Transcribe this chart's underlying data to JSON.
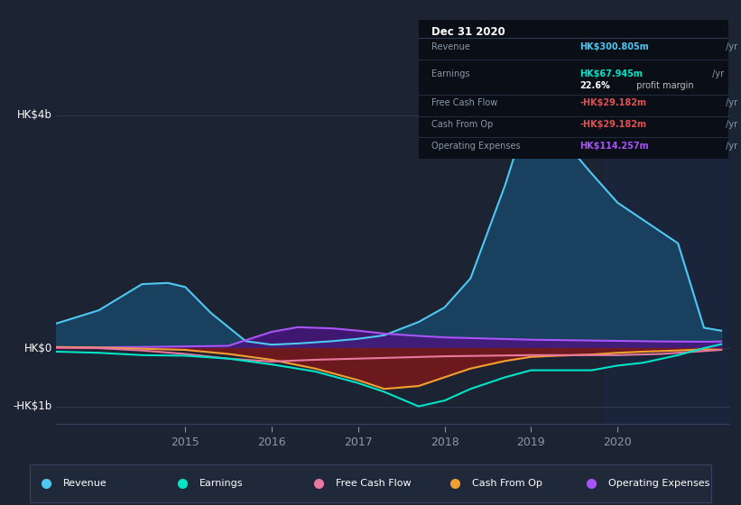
{
  "bg_color": "#1c2333",
  "plot_bg_color": "#1c2333",
  "title_box": {
    "date": "Dec 31 2020",
    "rows": [
      {
        "label": "Revenue",
        "value": "HK$300.805m",
        "value_color": "#4dc8f0",
        "suffix": " /yr",
        "extra": null
      },
      {
        "label": "Earnings",
        "value": "HK$67.945m",
        "value_color": "#00e5c8",
        "suffix": " /yr",
        "extra": "22.6% profit margin"
      },
      {
        "label": "Free Cash Flow",
        "value": "-HK$29.182m",
        "value_color": "#e05252",
        "suffix": " /yr",
        "extra": null
      },
      {
        "label": "Cash From Op",
        "value": "-HK$29.182m",
        "value_color": "#e05252",
        "suffix": " /yr",
        "extra": null
      },
      {
        "label": "Operating Expenses",
        "value": "HK$114.257m",
        "value_color": "#a855f7",
        "suffix": " /yr",
        "extra": null
      }
    ]
  },
  "yticks_labels": [
    "HK$4b",
    "HK$0",
    "-HK$1b"
  ],
  "ytick_values": [
    4000,
    0,
    -1000
  ],
  "ylim": [
    -1350,
    5200
  ],
  "xlim": [
    2013.5,
    2021.3
  ],
  "xticks": [
    2015,
    2016,
    2017,
    2018,
    2019,
    2020
  ],
  "grid_color": "#2e3a50",
  "text_color": "#8899aa",
  "axes_color": "#3a4060",
  "legend_bg": "#20293a",
  "legend_border": "#3a4060",
  "revenue_fill_color": "#1a4060",
  "opex_fill_color": "#4a1580",
  "cop_fill_color": "#7a1818",
  "series": {
    "revenue": {
      "color": "#4dc8f0",
      "label": "Revenue",
      "x": [
        2013.5,
        2014.0,
        2014.5,
        2014.8,
        2015.0,
        2015.3,
        2015.7,
        2016.0,
        2016.3,
        2016.7,
        2017.0,
        2017.3,
        2017.7,
        2018.0,
        2018.3,
        2018.7,
        2019.0,
        2019.3,
        2019.7,
        2020.0,
        2020.3,
        2020.7,
        2021.0,
        2021.2
      ],
      "y": [
        420,
        650,
        1100,
        1120,
        1050,
        600,
        120,
        60,
        80,
        120,
        160,
        220,
        450,
        700,
        1200,
        2800,
        4200,
        3700,
        3000,
        2500,
        2200,
        1800,
        350,
        300
      ]
    },
    "earnings": {
      "color": "#00e5c8",
      "label": "Earnings",
      "x": [
        2013.5,
        2014.0,
        2014.5,
        2015.0,
        2015.5,
        2016.0,
        2016.5,
        2017.0,
        2017.3,
        2017.7,
        2018.0,
        2018.3,
        2018.7,
        2019.0,
        2019.3,
        2019.7,
        2020.0,
        2020.3,
        2020.7,
        2021.0,
        2021.2
      ],
      "y": [
        -60,
        -80,
        -120,
        -130,
        -180,
        -280,
        -400,
        -600,
        -750,
        -1000,
        -900,
        -700,
        -500,
        -380,
        -380,
        -380,
        -300,
        -250,
        -120,
        0,
        68
      ]
    },
    "free_cash_flow": {
      "color": "#e878a0",
      "label": "Free Cash Flow",
      "x": [
        2013.5,
        2014.0,
        2014.5,
        2015.0,
        2015.5,
        2016.0,
        2016.5,
        2017.0,
        2017.5,
        2018.0,
        2018.5,
        2019.0,
        2019.5,
        2020.0,
        2020.5,
        2021.0,
        2021.2
      ],
      "y": [
        10,
        0,
        -40,
        -100,
        -180,
        -230,
        -200,
        -180,
        -160,
        -140,
        -130,
        -120,
        -120,
        -120,
        -100,
        -50,
        -29
      ]
    },
    "cash_from_op": {
      "color": "#f0a030",
      "label": "Cash From Op",
      "x": [
        2013.5,
        2014.0,
        2014.5,
        2015.0,
        2015.5,
        2016.0,
        2016.5,
        2017.0,
        2017.3,
        2017.7,
        2018.0,
        2018.3,
        2018.7,
        2019.0,
        2019.3,
        2019.7,
        2020.0,
        2020.3,
        2020.7,
        2021.0,
        2021.2
      ],
      "y": [
        20,
        10,
        -10,
        -30,
        -100,
        -200,
        -350,
        -550,
        -700,
        -650,
        -500,
        -350,
        -220,
        -150,
        -130,
        -110,
        -80,
        -60,
        -40,
        -20,
        -29
      ]
    },
    "operating_expenses": {
      "color": "#a855f7",
      "label": "Operating Expenses",
      "x": [
        2013.5,
        2014.0,
        2014.5,
        2015.0,
        2015.5,
        2016.0,
        2016.3,
        2016.7,
        2017.0,
        2017.3,
        2017.7,
        2018.0,
        2018.5,
        2019.0,
        2019.5,
        2020.0,
        2020.5,
        2021.0,
        2021.2
      ],
      "y": [
        10,
        15,
        20,
        30,
        40,
        280,
        360,
        340,
        300,
        250,
        210,
        185,
        165,
        145,
        135,
        125,
        115,
        110,
        114
      ]
    }
  },
  "shade_start": 2019.85,
  "shade_color": "#1a2640"
}
